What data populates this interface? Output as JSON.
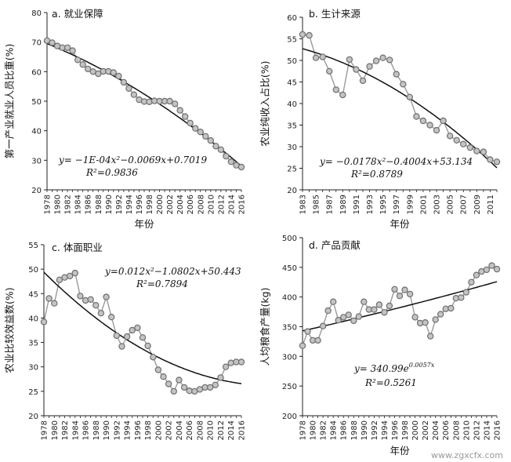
{
  "watermark": "www.zgxcfx.com",
  "colors": {
    "point_fill": "#c4c4c4",
    "point_stroke": "#6f6f6f",
    "series_line": "#9a9a9a",
    "fit_line": "#111111",
    "axis": "#222222"
  },
  "chart_data": [
    {
      "id": "a",
      "type": "scatter",
      "title": "a. 就业保障",
      "xlabel": "年份",
      "ylabel": "第一产业就业人员比重(%)",
      "xlim": [
        1978,
        2016
      ],
      "ylim": [
        20,
        80
      ],
      "yticks": [
        20,
        30,
        40,
        50,
        60,
        70,
        80
      ],
      "xtick_labels": [
        "1978",
        "1980",
        "1982",
        "1984",
        "1986",
        "1988",
        "1990",
        "1992",
        "1994",
        "1996",
        "1998",
        "2000",
        "2002",
        "2004",
        "2006",
        "2008",
        "2010",
        "2012",
        "2014",
        "2016"
      ],
      "equation": "y= −1E-04x²−0.0069x+0.7019",
      "r2": "R²=0.9836",
      "x": [
        1978,
        1979,
        1980,
        1981,
        1982,
        1983,
        1984,
        1985,
        1986,
        1987,
        1988,
        1989,
        1990,
        1991,
        1992,
        1993,
        1994,
        1995,
        1996,
        1997,
        1998,
        1999,
        2000,
        2001,
        2002,
        2003,
        2004,
        2005,
        2006,
        2007,
        2008,
        2009,
        2010,
        2011,
        2012,
        2013,
        2014,
        2015,
        2016
      ],
      "values": [
        70.5,
        69.8,
        68.7,
        68.1,
        68.1,
        67.1,
        64.0,
        62.4,
        60.9,
        60.0,
        59.3,
        60.1,
        60.1,
        59.7,
        58.5,
        56.4,
        54.3,
        52.2,
        50.5,
        49.9,
        49.8,
        50.1,
        50.0,
        50.0,
        50.0,
        49.1,
        46.9,
        44.8,
        42.6,
        40.8,
        39.6,
        38.1,
        36.7,
        34.8,
        33.6,
        31.4,
        29.5,
        28.3,
        27.7
      ],
      "fit": {
        "kind": "poly2",
        "coef": [
          -0.0001,
          -0.0069,
          0.7019
        ],
        "scale": 100,
        "index_base": 1977
      }
    },
    {
      "id": "b",
      "type": "scatter",
      "title": "b. 生计来源",
      "xlabel": "年份",
      "ylabel": "农业纯收入占比(%)",
      "xlim": [
        1983,
        2012
      ],
      "ylim": [
        20,
        60
      ],
      "yticks": [
        20,
        25,
        30,
        35,
        40,
        45,
        50,
        55,
        60
      ],
      "xtick_labels": [
        "1983",
        "1985",
        "1987",
        "1989",
        "1991",
        "1993",
        "1995",
        "1997",
        "1999",
        "2001",
        "2003",
        "2005",
        "2007",
        "2009",
        "2011"
      ],
      "equation": "y= −0.0178x²−0.4004x+53.134",
      "r2": "R²=0.8789",
      "x": [
        1983,
        1984,
        1985,
        1986,
        1987,
        1988,
        1989,
        1990,
        1991,
        1992,
        1993,
        1994,
        1995,
        1996,
        1997,
        1998,
        1999,
        2000,
        2001,
        2002,
        2003,
        2004,
        2005,
        2006,
        2007,
        2008,
        2009,
        2010,
        2011,
        2012
      ],
      "values": [
        56.0,
        55.8,
        50.6,
        50.8,
        47.5,
        43.2,
        42.0,
        50.2,
        47.9,
        45.3,
        48.6,
        49.9,
        50.6,
        50.1,
        46.8,
        44.5,
        41.5,
        37.0,
        36.0,
        35.0,
        33.8,
        36.0,
        32.5,
        31.5,
        30.6,
        29.8,
        29.0,
        28.8,
        27.0,
        26.5
      ],
      "fit": {
        "kind": "poly2",
        "coef": [
          -0.0178,
          -0.4004,
          53.134
        ],
        "scale": 1,
        "index_base": 1982
      }
    },
    {
      "id": "c",
      "type": "scatter",
      "title": "c. 体面职业",
      "xlabel": "",
      "ylabel": "农业比较效益数(%)",
      "xlim": [
        1978,
        2016
      ],
      "ylim": [
        20,
        55
      ],
      "yticks": [
        20,
        25,
        30,
        35,
        40,
        45,
        50,
        55
      ],
      "xtick_labels": [
        "1978",
        "1980",
        "1982",
        "1984",
        "1986",
        "1988",
        "1990",
        "1992",
        "1994",
        "1996",
        "1998",
        "2000",
        "2002",
        "2004",
        "2006",
        "2008",
        "2010",
        "2012",
        "2014",
        "2016"
      ],
      "equation": "y=0.012x²−1.0802x+50.443",
      "r2": "R²=0.7894",
      "x": [
        1978,
        1979,
        1980,
        1981,
        1982,
        1983,
        1984,
        1985,
        1986,
        1987,
        1988,
        1989,
        1990,
        1991,
        1992,
        1993,
        1994,
        1995,
        1996,
        1997,
        1998,
        1999,
        2000,
        2001,
        2002,
        2003,
        2004,
        2005,
        2006,
        2007,
        2008,
        2009,
        2010,
        2011,
        2012,
        2013,
        2014,
        2015,
        2016
      ],
      "values": [
        39.2,
        44.0,
        43.0,
        47.8,
        48.3,
        48.6,
        49.2,
        44.5,
        43.6,
        43.8,
        42.6,
        41.0,
        44.3,
        40.2,
        36.4,
        34.2,
        36.2,
        37.5,
        38.0,
        36.0,
        34.3,
        32.0,
        29.4,
        28.0,
        26.5,
        25.0,
        27.3,
        25.8,
        25.1,
        25.0,
        25.4,
        25.8,
        25.8,
        26.3,
        27.8,
        30.0,
        30.8,
        31.0,
        31.0
      ],
      "fit": {
        "kind": "poly2",
        "coef": [
          0.012,
          -1.0802,
          50.443
        ],
        "scale": 1,
        "index_base": 1977
      }
    },
    {
      "id": "d",
      "type": "scatter",
      "title": "d. 产品贡献",
      "xlabel": "年份",
      "ylabel": "人均粮食产量(kg)",
      "xlim": [
        1978,
        2016
      ],
      "ylim": [
        200,
        500
      ],
      "yticks": [
        200,
        250,
        300,
        350,
        400,
        450,
        500
      ],
      "xtick_labels": [
        "1978",
        "1980",
        "1982",
        "1984",
        "1986",
        "1988",
        "1990",
        "1992",
        "1994",
        "1996",
        "1998",
        "2000",
        "2002",
        "2004",
        "2006",
        "2008",
        "2010",
        "2012",
        "2014",
        "2016"
      ],
      "equation": "y= 340.99e^0.0057x",
      "eq_base": "y= 340.99e",
      "eq_exp": "0.0057x",
      "r2": "R²=0.5261",
      "x": [
        1978,
        1979,
        1980,
        1981,
        1982,
        1983,
        1984,
        1985,
        1986,
        1987,
        1988,
        1989,
        1990,
        1991,
        1992,
        1993,
        1994,
        1995,
        1996,
        1997,
        1998,
        1999,
        2000,
        2001,
        2002,
        2003,
        2004,
        2005,
        2006,
        2007,
        2008,
        2009,
        2010,
        2011,
        2012,
        2013,
        2014,
        2015,
        2016
      ],
      "values": [
        318,
        342,
        327,
        327,
        351,
        377,
        392,
        361,
        366,
        370,
        360,
        367,
        392,
        379,
        379,
        387,
        374,
        385,
        413,
        402,
        412,
        405,
        366,
        356,
        357,
        334,
        362,
        371,
        380,
        381,
        398,
        399,
        408,
        425,
        437,
        443,
        446,
        453,
        447
      ],
      "fit": {
        "kind": "exp",
        "a": 340.99,
        "b": 0.0057,
        "index_base": 1977
      }
    }
  ]
}
